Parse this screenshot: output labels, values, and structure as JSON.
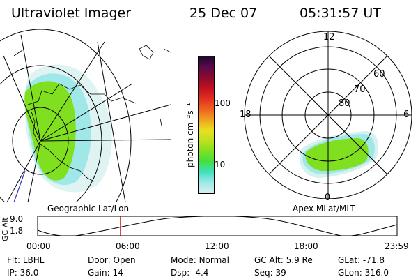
{
  "header": {
    "instrument": "Ultraviolet Imager",
    "date": "25 Dec 07",
    "time": "05:31:57 UT"
  },
  "left_panel": {
    "caption": "Geographic Lat/Lon"
  },
  "right_panel": {
    "caption": "Apex MLat/MLT",
    "mlt_labels": {
      "top": "12",
      "left": "18",
      "right": "6",
      "bottom": "0"
    },
    "lat_labels": [
      "60",
      "70",
      "80"
    ]
  },
  "colorbar": {
    "unit_label": "photon cm⁻²s⁻¹",
    "tick_labels": [
      "100",
      "10"
    ],
    "colors": [
      "#1a0a2e",
      "#5a0a4a",
      "#8a0a2e",
      "#c01020",
      "#e03020",
      "#f06020",
      "#f0a020",
      "#e8e020",
      "#c0e020",
      "#80e020",
      "#40e040",
      "#40e0c0",
      "#a0e8e8",
      "#d8f0f0"
    ]
  },
  "timeline": {
    "ylabel": "GC Alt",
    "y_ticks": [
      "9.0",
      "1.8"
    ],
    "x_ticks": [
      "00:00",
      "06:00",
      "12:00",
      "18:00",
      "23:59"
    ],
    "marker_time_hours": 5.53
  },
  "status": {
    "row1": [
      {
        "label": "Flt:",
        "value": "LBHL"
      },
      {
        "label": "Door:",
        "value": "Open"
      },
      {
        "label": "Mode:",
        "value": "Normal"
      },
      {
        "label": "GC Alt:",
        "value": "5.9 Re"
      },
      {
        "label": "GLat:",
        "value": "-71.8"
      }
    ],
    "row2": [
      {
        "label": "IP:",
        "value": "36.0"
      },
      {
        "label": "Gain:",
        "value": "14"
      },
      {
        "label": "Dsp:",
        "value": "-4.4"
      },
      {
        "label": "Seq:",
        "value": "39"
      },
      {
        "label": "GLon:",
        "value": "316.0"
      }
    ]
  }
}
